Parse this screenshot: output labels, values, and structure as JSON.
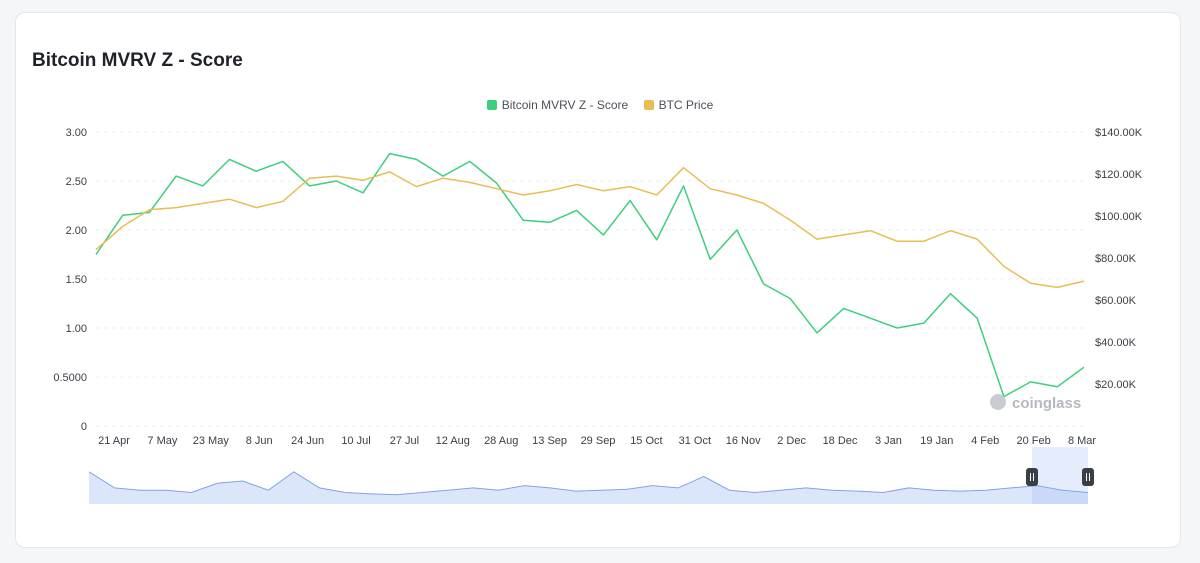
{
  "page": {
    "title": "Bitcoin MVRV Z - Score",
    "watermark": "coinglass"
  },
  "colors": {
    "zscore": "#3ccf7c",
    "price": "#e8bd55",
    "grid": "#eceef1",
    "navigator_fill": "#dbe6fb",
    "navigator_line": "#7fa4e6"
  },
  "chart_data": {
    "type": "line",
    "title": "Bitcoin MVRV Z - Score",
    "legend": [
      "Bitcoin MVRV Z - Score",
      "BTC Price"
    ],
    "legend_position": "top-center",
    "grid": true,
    "x_labels": [
      "21 Apr",
      "7 May",
      "23 May",
      "8 Jun",
      "24 Jun",
      "10 Jul",
      "27 Jul",
      "12 Aug",
      "28 Aug",
      "13 Sep",
      "29 Sep",
      "15 Oct",
      "31 Oct",
      "16 Nov",
      "2 Dec",
      "18 Dec",
      "3 Jan",
      "19 Jan",
      "4 Feb",
      "20 Feb",
      "8 Mar"
    ],
    "y_left": {
      "ticks": [
        "0",
        "0.5000",
        "1.00",
        "1.50",
        "2.00",
        "2.50",
        "3.00"
      ],
      "range": [
        0,
        3
      ]
    },
    "y_right": {
      "ticks": [
        "$20.00K",
        "$40.00K",
        "$60.00K",
        "$80.00K",
        "$100.00K",
        "$120.00K",
        "$140.00K"
      ],
      "range": [
        0,
        140000
      ]
    },
    "series": [
      {
        "name": "Bitcoin MVRV Z - Score",
        "axis": "left",
        "values": [
          1.75,
          2.15,
          2.18,
          2.55,
          2.45,
          2.72,
          2.6,
          2.7,
          2.45,
          2.5,
          2.38,
          2.78,
          2.72,
          2.55,
          2.7,
          2.48,
          2.1,
          2.08,
          2.2,
          1.95,
          2.3,
          1.9,
          2.45,
          1.7,
          2.0,
          1.45,
          1.3,
          0.95,
          1.2,
          1.1,
          1.0,
          1.05,
          1.35,
          1.1,
          0.3,
          0.45,
          0.4,
          0.6
        ]
      },
      {
        "name": "BTC Price",
        "axis": "right",
        "values": [
          84000,
          95000,
          103000,
          104000,
          106000,
          108000,
          104000,
          107000,
          118000,
          119000,
          117000,
          121000,
          114000,
          118000,
          116000,
          113000,
          110000,
          112000,
          115000,
          112000,
          114000,
          110000,
          123000,
          113000,
          110000,
          106000,
          98000,
          89000,
          91000,
          93000,
          88000,
          88000,
          93000,
          89000,
          76000,
          68000,
          66000,
          69000
        ]
      }
    ]
  },
  "navigator": {
    "values": [
      0.7,
      0.35,
      0.3,
      0.3,
      0.25,
      0.45,
      0.5,
      0.3,
      0.7,
      0.35,
      0.25,
      0.22,
      0.2,
      0.25,
      0.3,
      0.35,
      0.3,
      0.4,
      0.35,
      0.28,
      0.3,
      0.32,
      0.4,
      0.35,
      0.6,
      0.3,
      0.25,
      0.3,
      0.35,
      0.3,
      0.28,
      0.25,
      0.35,
      0.3,
      0.28,
      0.3,
      0.35,
      0.4,
      0.3,
      0.25
    ]
  }
}
